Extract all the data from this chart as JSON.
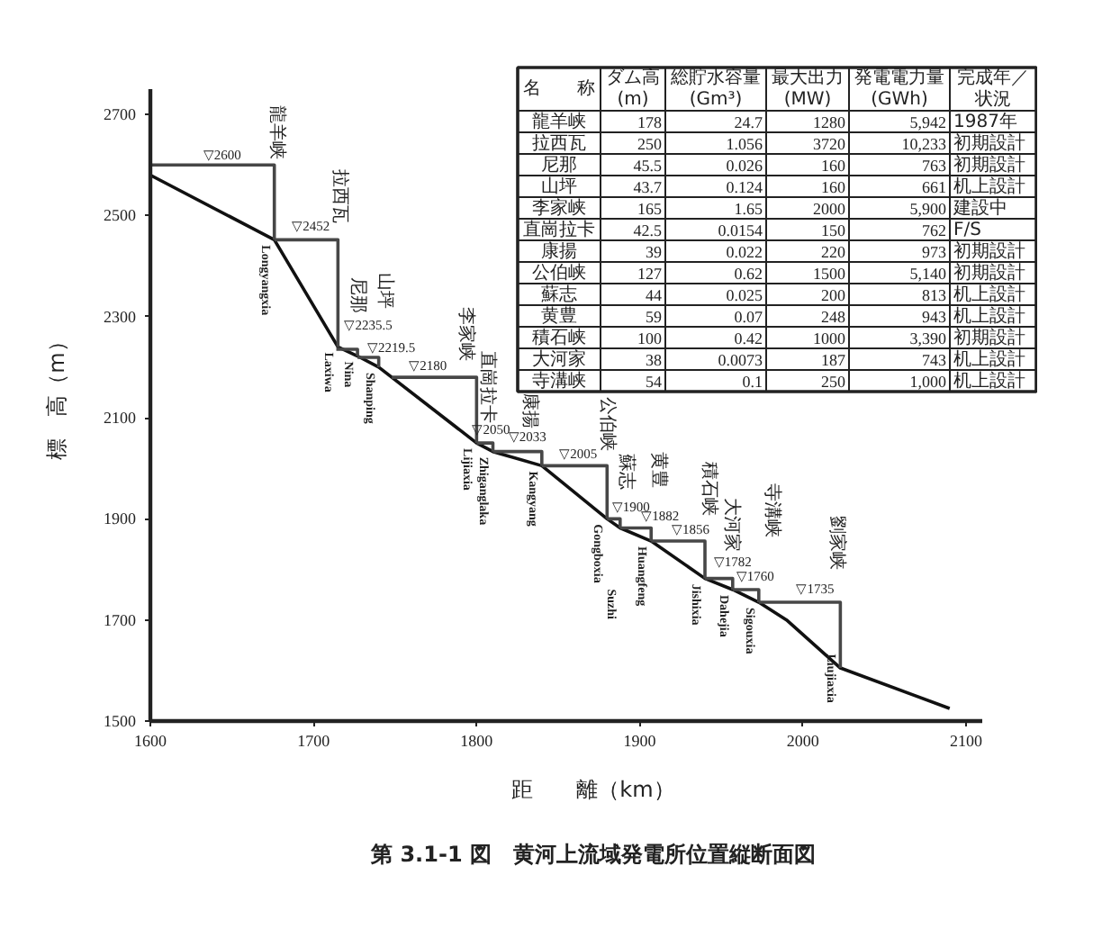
{
  "chart_data": [
    {
      "type": "line",
      "title": "第 3.1-1 図　黄河上流域発電所位置縦断面図",
      "xlabel": "距　　離（km）",
      "ylabel": "標　高（m）",
      "xlim": [
        1600,
        2110
      ],
      "ylim": [
        1500,
        2750
      ],
      "xticks": [
        1600,
        1700,
        1800,
        1900,
        2000,
        2100
      ],
      "yticks": [
        1500,
        1700,
        1900,
        2100,
        2300,
        2500,
        2700
      ],
      "series": [
        {
          "color": "#111111",
          "x": [
            1600,
            1676,
            1715,
            1727,
            1740,
            1800,
            1810,
            1840,
            1880,
            1888,
            1907,
            1940,
            1957,
            1973,
            1990,
            2023,
            2090
          ],
          "values": [
            2580,
            2452,
            2240,
            2222,
            2200,
            2050,
            2033,
            2005,
            1900,
            1882,
            1856,
            1782,
            1760,
            1735,
            1700,
            1605,
            1525
          ]
        },
        {
          "color": "#474747",
          "x": [
            1600,
            1676,
            1676
          ],
          "values": [
            2600,
            2600,
            2452
          ]
        },
        {
          "color": "#474747",
          "x": [
            1676,
            1715,
            1715
          ],
          "values": [
            2452,
            2452,
            2240
          ]
        },
        {
          "color": "#474747",
          "x": [
            1714,
            1727,
            1727
          ],
          "values": [
            2235.5,
            2235.5,
            2222
          ]
        },
        {
          "color": "#474747",
          "x": [
            1727,
            1740,
            1740
          ],
          "values": [
            2219.5,
            2219.5,
            2200
          ]
        },
        {
          "color": "#474747",
          "x": [
            1748,
            1800,
            1800
          ],
          "values": [
            2180,
            2180,
            2050
          ]
        },
        {
          "color": "#474747",
          "x": [
            1800,
            1810,
            1810
          ],
          "values": [
            2050,
            2050,
            2033
          ]
        },
        {
          "color": "#474747",
          "x": [
            1810,
            1840,
            1840
          ],
          "values": [
            2033,
            2033,
            2005
          ]
        },
        {
          "color": "#474747",
          "x": [
            1840,
            1880,
            1880
          ],
          "values": [
            2005,
            2005,
            1900
          ]
        },
        {
          "color": "#474747",
          "x": [
            1880,
            1888,
            1888
          ],
          "values": [
            1900,
            1900,
            1882
          ]
        },
        {
          "color": "#474747",
          "x": [
            1888,
            1907,
            1907
          ],
          "values": [
            1882,
            1882,
            1856
          ]
        },
        {
          "color": "#474747",
          "x": [
            1907,
            1940,
            1940
          ],
          "values": [
            1856,
            1856,
            1782
          ]
        },
        {
          "color": "#474747",
          "x": [
            1940,
            1957,
            1957
          ],
          "values": [
            1782,
            1782,
            1760
          ]
        },
        {
          "color": "#474747",
          "x": [
            1957,
            1973,
            1973
          ],
          "values": [
            1760,
            1760,
            1735
          ]
        },
        {
          "color": "#474747",
          "x": [
            1973,
            2023,
            2023
          ],
          "values": [
            1735,
            1735,
            1605
          ]
        }
      ],
      "annotations": [
        "▽2600",
        "▽2452",
        "▽2235.5",
        "▽2219.5",
        "▽2180",
        "▽2050",
        "▽2033",
        "▽2005",
        "▽1900",
        "▽1882",
        "▽1856",
        "▽1782",
        "▽1760",
        "▽1735",
        "龍羊峡",
        "拉西瓦",
        "尼那",
        "山坪",
        "李家峡",
        "直崗拉卡",
        "康揚",
        "公伯峡",
        "蘇志",
        "黄豊",
        "積石峡",
        "大河家",
        "寺溝峡",
        "劉家峡",
        "Longyangxia",
        "Laxiwa",
        "Nina",
        "Shanping",
        "Lijiaxia",
        "Zhiganglaka",
        "Kangyang",
        "Gongboxia",
        "Suzhi",
        "Huangfeng",
        "Jishixia",
        "Dahejia",
        "Sigouxia",
        "Liujiaxia"
      ]
    },
    {
      "type": "other",
      "categories": [
        "名　　称",
        "ダム高\n(m)",
        "総貯水容量\n(Gm³)",
        "最大出力\n(MW)",
        "発電電力量\n(GWh)",
        "完成年／状況"
      ],
      "y_categories": [
        "龍羊峡",
        "拉西瓦",
        "尼那",
        "山坪",
        "李家峡",
        "直崗拉卡",
        "康揚",
        "公伯峡",
        "蘇志",
        "黄豊",
        "積石峡",
        "大河家",
        "寺溝峡"
      ],
      "cell_labels": [
        [
          "178",
          "24.7",
          "1280",
          "5,942",
          "1987年"
        ],
        [
          "250",
          "1.056",
          "3720",
          "10,233",
          "初期設計"
        ],
        [
          "45.5",
          "0.026",
          "160",
          "763",
          "初期設計"
        ],
        [
          "43.7",
          "0.124",
          "160",
          "661",
          "机上設計"
        ],
        [
          "165",
          "1.65",
          "2000",
          "5,900",
          "建設中"
        ],
        [
          "42.5",
          "0.0154",
          "150",
          "762",
          "F/S"
        ],
        [
          "39",
          "0.022",
          "220",
          "973",
          "初期設計"
        ],
        [
          "127",
          "0.62",
          "1500",
          "5,140",
          "初期設計"
        ],
        [
          "44",
          "0.025",
          "200",
          "813",
          "机上設計"
        ],
        [
          "59",
          "0.07",
          "248",
          "943",
          "机上設計"
        ],
        [
          "100",
          "0.42",
          "1000",
          "3,390",
          "初期設計"
        ],
        [
          "38",
          "0.0073",
          "187",
          "743",
          "机上設計"
        ],
        [
          "54",
          "0.1",
          "250",
          "1,000",
          "机上設計"
        ]
      ]
    }
  ]
}
